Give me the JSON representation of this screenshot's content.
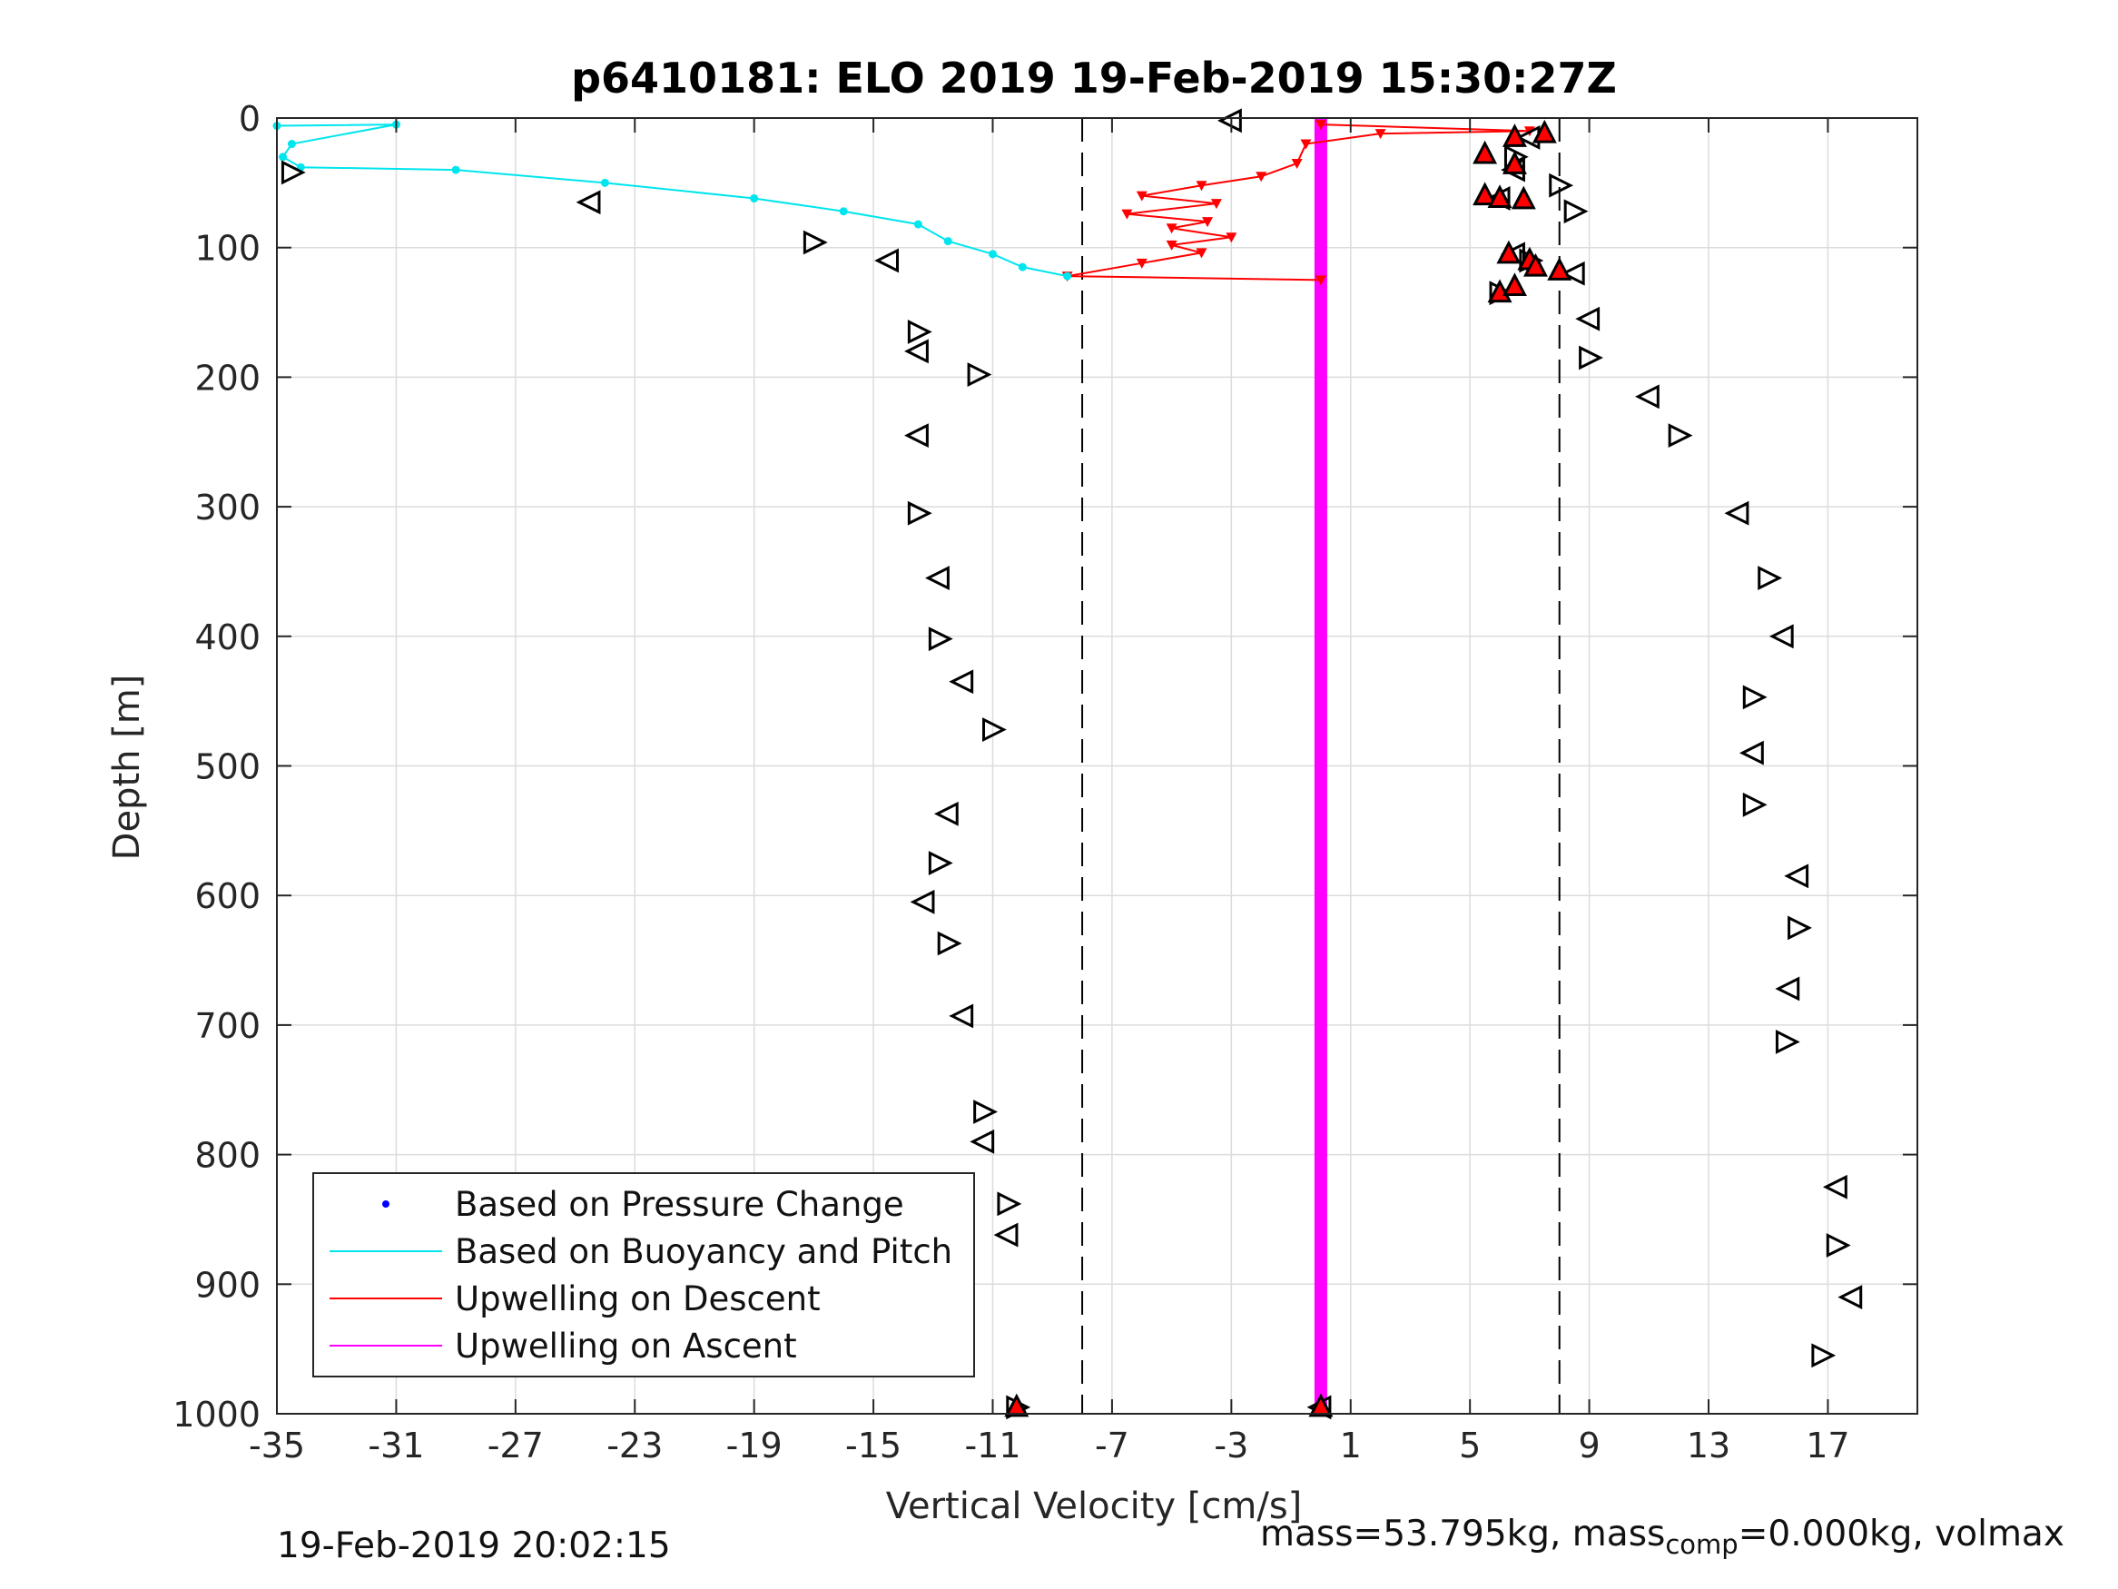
{
  "chart_data": {
    "type": "scatter",
    "title": "p6410181: ELO 2019 19-Feb-2019 15:30:27Z",
    "xlabel": "Vertical Velocity [cm/s]",
    "ylabel": "Depth [m]",
    "xlim": [
      -35,
      20
    ],
    "ylim": [
      0,
      1000
    ],
    "y_reversed": true,
    "grid": true,
    "xticks": [
      -35,
      -31,
      -27,
      -23,
      -19,
      -15,
      -11,
      -7,
      -3,
      1,
      5,
      9,
      13,
      17
    ],
    "xtick_labels": [
      "-35",
      "-31",
      "-27",
      "-23",
      "-19",
      "-15",
      "-11",
      "-7",
      "-3",
      "1",
      "5",
      "9",
      "13",
      "17"
    ],
    "yticks": [
      0,
      100,
      200,
      300,
      400,
      500,
      600,
      700,
      800,
      900,
      1000
    ],
    "ytick_labels": [
      "0",
      "100",
      "200",
      "300",
      "400",
      "500",
      "600",
      "700",
      "800",
      "900",
      "1000"
    ],
    "vlines": [
      -8,
      8
    ],
    "legend_position": "bottom-left",
    "legend": [
      {
        "label": "Based on Pressure Change",
        "style": "dot",
        "color": "#0000ff"
      },
      {
        "label": "Based on Buoyancy and Pitch",
        "style": "line",
        "color": "#00e5ee"
      },
      {
        "label": "Upwelling on Descent",
        "style": "line",
        "color": "#ff0000"
      },
      {
        "label": "Upwelling on Ascent",
        "style": "line",
        "color": "#ff00ff"
      }
    ],
    "series": [
      {
        "name": "Based on Pressure Change (descent)",
        "color": "#0000ff",
        "points": [
          [
            -34.2,
            5
          ],
          [
            -34.5,
            20
          ],
          [
            -34.8,
            30
          ],
          [
            -34.2,
            35
          ],
          [
            -32,
            45
          ],
          [
            -29,
            48
          ],
          [
            -25,
            55
          ],
          [
            -24,
            65
          ],
          [
            -22,
            72
          ],
          [
            -21,
            78
          ],
          [
            -19,
            88
          ],
          [
            -17,
            95
          ],
          [
            -16,
            100
          ],
          [
            -17,
            110
          ],
          [
            -16,
            118
          ],
          [
            -17,
            125
          ],
          [
            -15,
            130
          ],
          [
            -16,
            140
          ],
          [
            -14,
            150
          ],
          [
            -14,
            165
          ],
          [
            -13.5,
            175
          ],
          [
            -12.5,
            190
          ],
          [
            -13.5,
            205
          ],
          [
            -14,
            220
          ],
          [
            -13.5,
            240
          ],
          [
            -13.5,
            260
          ],
          [
            -13.8,
            280
          ],
          [
            -14.2,
            300
          ],
          [
            -13.5,
            320
          ],
          [
            -13.5,
            340
          ],
          [
            -12.5,
            360
          ],
          [
            -12.5,
            380
          ],
          [
            -12.8,
            400
          ],
          [
            -12.5,
            420
          ],
          [
            -12.3,
            440
          ],
          [
            -11,
            460
          ],
          [
            -11,
            480
          ],
          [
            -11.5,
            500
          ],
          [
            -12,
            520
          ],
          [
            -12.5,
            540
          ],
          [
            -12.5,
            560
          ],
          [
            -12.8,
            580
          ],
          [
            -13.2,
            600
          ],
          [
            -12.8,
            620
          ],
          [
            -12.3,
            640
          ],
          [
            -11.8,
            660
          ],
          [
            -12,
            680
          ],
          [
            -11.8,
            700
          ],
          [
            -11.5,
            720
          ],
          [
            -11.3,
            740
          ],
          [
            -11.5,
            760
          ],
          [
            -11.7,
            780
          ],
          [
            -11.8,
            800
          ],
          [
            -10.7,
            820
          ],
          [
            -10.5,
            840
          ],
          [
            -10.5,
            860
          ],
          [
            -10.2,
            880
          ],
          [
            -10.5,
            900
          ],
          [
            -10.7,
            920
          ],
          [
            -10.5,
            940
          ],
          [
            -10.3,
            960
          ],
          [
            -10.5,
            980
          ],
          [
            -10.2,
            990
          ]
        ]
      },
      {
        "name": "Based on Pressure Change (ascent)",
        "color": "#0000ff",
        "points": [
          [
            9,
            5
          ],
          [
            8,
            15
          ],
          [
            6.8,
            25
          ],
          [
            6,
            35
          ],
          [
            8.5,
            45
          ],
          [
            6,
            55
          ],
          [
            6,
            65
          ],
          [
            9,
            75
          ],
          [
            11,
            85
          ],
          [
            12,
            90
          ],
          [
            7,
            100
          ],
          [
            10,
            110
          ],
          [
            6.5,
            120
          ],
          [
            7,
            130
          ],
          [
            8.5,
            140
          ],
          [
            9,
            150
          ],
          [
            9.5,
            165
          ],
          [
            9.2,
            180
          ],
          [
            10,
            195
          ],
          [
            10.8,
            210
          ],
          [
            11.5,
            230
          ],
          [
            12,
            250
          ],
          [
            13,
            270
          ],
          [
            14,
            290
          ],
          [
            14.5,
            310
          ],
          [
            15,
            330
          ],
          [
            15.2,
            350
          ],
          [
            15.5,
            370
          ],
          [
            15,
            390
          ],
          [
            15.2,
            410
          ],
          [
            14.5,
            430
          ],
          [
            14.8,
            450
          ],
          [
            14.3,
            470
          ],
          [
            14.5,
            490
          ],
          [
            14.7,
            510
          ],
          [
            14.6,
            530
          ],
          [
            15,
            550
          ],
          [
            15.5,
            570
          ],
          [
            15.8,
            590
          ],
          [
            16,
            610
          ],
          [
            16.2,
            630
          ],
          [
            15.8,
            650
          ],
          [
            15.8,
            670
          ],
          [
            16,
            690
          ],
          [
            15.7,
            710
          ],
          [
            15.6,
            730
          ],
          [
            16,
            750
          ],
          [
            16.2,
            770
          ],
          [
            16.6,
            790
          ],
          [
            17,
            810
          ],
          [
            17.3,
            830
          ],
          [
            17.2,
            850
          ],
          [
            17.3,
            870
          ],
          [
            17,
            890
          ],
          [
            17.4,
            910
          ],
          [
            17.2,
            930
          ],
          [
            16.9,
            950
          ],
          [
            17,
            970
          ],
          [
            17,
            985
          ]
        ]
      },
      {
        "name": "Based on Buoyancy and Pitch",
        "color": "#00e5ee",
        "style": "line",
        "points": [
          [
            -35,
            6
          ],
          [
            -31,
            5
          ],
          [
            -34.5,
            20
          ],
          [
            -34.8,
            30
          ],
          [
            -34.2,
            38
          ],
          [
            -29,
            40
          ],
          [
            -24,
            50
          ],
          [
            -19,
            62
          ],
          [
            -16,
            72
          ],
          [
            -13.5,
            82
          ],
          [
            -12.5,
            95
          ],
          [
            -11,
            105
          ],
          [
            -10,
            115
          ],
          [
            -8.5,
            122
          ]
        ]
      },
      {
        "name": "Upwelling on Descent",
        "color": "#ff0000",
        "style": "line",
        "points": [
          [
            0,
            5
          ],
          [
            7,
            10
          ],
          [
            2,
            12
          ],
          [
            -0.5,
            20
          ],
          [
            -0.8,
            35
          ],
          [
            -2,
            45
          ],
          [
            -4,
            52
          ],
          [
            -6,
            60
          ],
          [
            -3.5,
            66
          ],
          [
            -6.5,
            74
          ],
          [
            -3.8,
            80
          ],
          [
            -5,
            85
          ],
          [
            -3,
            92
          ],
          [
            -5,
            98
          ],
          [
            -4,
            104
          ],
          [
            -6,
            112
          ],
          [
            -8.5,
            122
          ],
          [
            0,
            125
          ]
        ]
      },
      {
        "name": "Upwelling on Ascent",
        "color": "#ff00ff",
        "style": "line",
        "points": [
          [
            0,
            0
          ],
          [
            0,
            1000
          ]
        ]
      }
    ],
    "markers": {
      "pitch_triangles": [
        [
          -3,
          2
        ],
        [
          -34.5,
          42
        ],
        [
          -24.5,
          65
        ],
        [
          -17,
          96
        ],
        [
          -14.5,
          110
        ],
        [
          -13.5,
          165
        ],
        [
          -13.5,
          180
        ],
        [
          -11.5,
          198
        ],
        [
          -13.5,
          245
        ],
        [
          -13.5,
          305
        ],
        [
          -12.8,
          355
        ],
        [
          -12.8,
          402
        ],
        [
          -12,
          435
        ],
        [
          -11,
          472
        ],
        [
          -12.5,
          537
        ],
        [
          -12.8,
          575
        ],
        [
          -13.3,
          605
        ],
        [
          -12.5,
          637
        ],
        [
          -12,
          693
        ],
        [
          -11.3,
          767
        ],
        [
          -11.3,
          790
        ],
        [
          -10.5,
          838
        ],
        [
          -10.5,
          862
        ],
        [
          -10.2,
          995
        ],
        [
          7,
          15
        ],
        [
          6.5,
          30
        ],
        [
          6.5,
          40
        ],
        [
          8,
          52
        ],
        [
          6,
          62
        ],
        [
          8.5,
          72
        ],
        [
          6.5,
          105
        ],
        [
          7,
          110
        ],
        [
          8.5,
          120
        ],
        [
          6,
          135
        ],
        [
          9,
          155
        ],
        [
          9,
          185
        ],
        [
          11,
          215
        ],
        [
          12,
          245
        ],
        [
          14,
          305
        ],
        [
          15,
          355
        ],
        [
          15.5,
          400
        ],
        [
          14.5,
          447
        ],
        [
          14.5,
          490
        ],
        [
          14.5,
          530
        ],
        [
          16,
          585
        ],
        [
          16,
          625
        ],
        [
          15.7,
          672
        ],
        [
          15.6,
          713
        ],
        [
          17.3,
          825
        ],
        [
          17.3,
          870
        ],
        [
          17.8,
          910
        ],
        [
          16.8,
          955
        ],
        [
          0,
          995
        ]
      ],
      "red_triangles": [
        [
          6.5,
          15
        ],
        [
          7.5,
          12
        ],
        [
          5.5,
          28
        ],
        [
          6.5,
          36
        ],
        [
          5.5,
          60
        ],
        [
          6,
          62
        ],
        [
          6.8,
          63
        ],
        [
          6.3,
          105
        ],
        [
          7,
          110
        ],
        [
          7.2,
          115
        ],
        [
          8,
          118
        ],
        [
          6,
          135
        ],
        [
          6.5,
          130
        ],
        [
          -10.2,
          995
        ],
        [
          0,
          995
        ]
      ]
    }
  },
  "footer": {
    "timestamp": "19-Feb-2019 20:02:15",
    "mass_prefix": "mass=53.795kg, mass",
    "mass_sub": "comp",
    "mass_suffix": "=0.000kg, volmax"
  }
}
